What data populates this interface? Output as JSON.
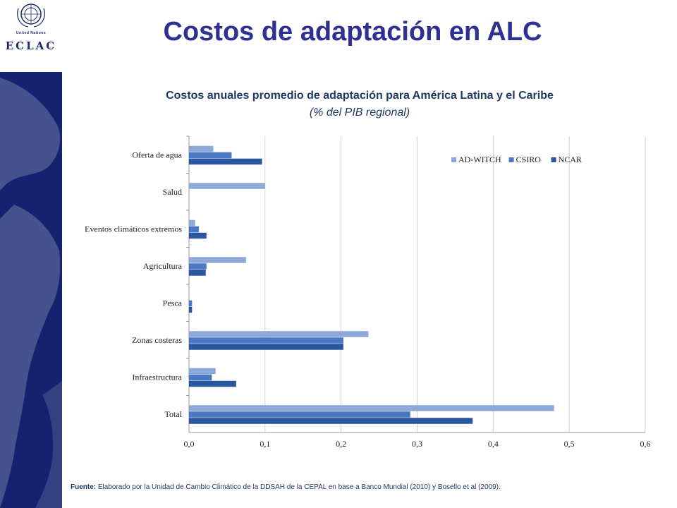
{
  "slide": {
    "title": "Costos de adaptación en ALC",
    "logo": {
      "org": "United Nations",
      "acronym": "ECLAC"
    },
    "source_label": "Fuente:",
    "source_text": "Elaborado por la Unidad de Cambio Climático de la DDSAH de la CEPAL en base a  Banco Mundial (2010) y Bosello et al (2009).",
    "colors": {
      "sidebar": "#13236f",
      "title": "#2e3192"
    }
  },
  "chart_data": {
    "type": "bar",
    "orientation": "horizontal",
    "title": "Costos anuales promedio de adaptación para América Latina y el Caribe",
    "subtitle": "(% del PIB regional)",
    "categories": [
      "Oferta de agua",
      "Salud",
      "Eventos climáticos extremos",
      "Agricultura",
      "Pesca",
      "Zonas costeras",
      "Infraestructura",
      "Total"
    ],
    "series": [
      {
        "name": "AD-WITCH",
        "color": "#8ea9d8",
        "values": [
          0.032,
          0.1,
          0.008,
          0.075,
          0.0,
          0.236,
          0.035,
          0.48
        ]
      },
      {
        "name": "CSIRO",
        "color": "#4a78c2",
        "values": [
          0.056,
          0.0,
          0.013,
          0.023,
          0.004,
          0.203,
          0.03,
          0.291
        ]
      },
      {
        "name": "NCAR",
        "color": "#2a569e",
        "values": [
          0.096,
          0.0,
          0.023,
          0.022,
          0.004,
          0.203,
          0.062,
          0.373
        ]
      }
    ],
    "xlim": [
      0,
      0.6
    ],
    "xticks": [
      "0,0",
      "0,1",
      "0,2",
      "0,3",
      "0,4",
      "0,5",
      "0,6"
    ],
    "grid": true,
    "legend_position": "top-right"
  }
}
